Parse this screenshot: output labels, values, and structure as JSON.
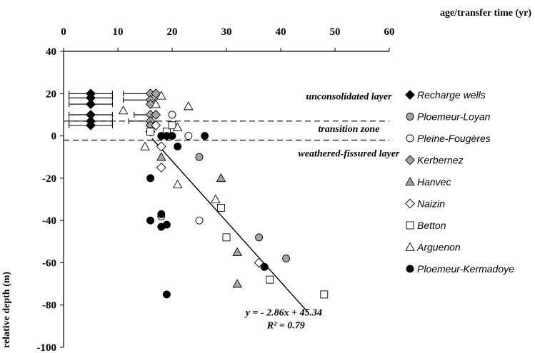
{
  "chart_data": {
    "type": "scatter",
    "xlabel": "age/transfer time (yr)",
    "ylabel": "relative depth (m)",
    "xlim": [
      0,
      60
    ],
    "ylim": [
      -100,
      40
    ],
    "xticks": [
      0,
      10,
      20,
      30,
      40,
      50,
      60
    ],
    "yticks": [
      40,
      20,
      0,
      -20,
      -40,
      -60,
      -80,
      -100
    ],
    "x_axis_position": "top",
    "grid": false,
    "legend_position": "right",
    "layers": [
      {
        "label": "unconsolidated layer",
        "label_x": 44,
        "label_y": 19
      },
      {
        "label": "transition zone",
        "label_x": 44,
        "label_y": 3.5
      },
      {
        "label": "weathered-fissured layer",
        "label_x": 44,
        "label_y": -8
      }
    ],
    "boundaries": [
      7,
      -2
    ],
    "fit": {
      "equation": "y = - 2.86x + 45.34",
      "r2": "R² = 0.79",
      "slope": -2.86,
      "intercept": 45.34,
      "x_range": [
        16.3,
        45
      ],
      "label_x": 34,
      "label_y": -85,
      "r2_label_x": 37,
      "r2_label_y": -91
    },
    "series": [
      {
        "name": "Recharge wells",
        "marker": "diamond",
        "fill": "#000000",
        "points": [
          [
            5,
            20
          ],
          [
            5,
            18
          ],
          [
            5,
            15
          ],
          [
            5,
            10
          ],
          [
            5,
            7
          ],
          [
            5,
            5
          ]
        ],
        "error_bars": [
          [
            1,
            9,
            20
          ],
          [
            1,
            9,
            18
          ],
          [
            1,
            9,
            15
          ],
          [
            1,
            9,
            10
          ],
          [
            1,
            9,
            7
          ],
          [
            1,
            9,
            5
          ]
        ]
      },
      {
        "name": "Ploemeur-Loyan",
        "marker": "circle",
        "fill": "#a6a6a6",
        "points": [
          [
            25,
            -10
          ],
          [
            36,
            -48
          ],
          [
            41,
            -58
          ]
        ]
      },
      {
        "name": "Pleine-Fougères",
        "marker": "circle",
        "fill": "#ffffff",
        "points": [
          [
            20,
            10
          ],
          [
            23,
            0
          ],
          [
            18,
            -38
          ],
          [
            25,
            -40
          ]
        ]
      },
      {
        "name": "Kerbernez",
        "marker": "diamond",
        "fill": "#a6a6a6",
        "points": [
          [
            16,
            20
          ],
          [
            17,
            20
          ],
          [
            16,
            17
          ],
          [
            16,
            15
          ],
          [
            16,
            10
          ],
          [
            17,
            10
          ],
          [
            16,
            7
          ],
          [
            16,
            5
          ]
        ],
        "error_bars": [
          [
            11,
            16,
            20
          ],
          [
            11,
            17,
            17
          ],
          [
            13,
            16,
            10
          ],
          [
            12,
            16,
            7
          ]
        ]
      },
      {
        "name": "Hanvec",
        "marker": "triangle",
        "fill": "#a6a6a6",
        "points": [
          [
            18,
            -10
          ],
          [
            29,
            -20
          ],
          [
            32,
            -55
          ],
          [
            32,
            -70
          ]
        ]
      },
      {
        "name": "Naizin",
        "marker": "diamond",
        "fill": "#ffffff",
        "points": [
          [
            17,
            5
          ],
          [
            16,
            2
          ],
          [
            18,
            -5
          ],
          [
            18,
            -15
          ],
          [
            36,
            -60
          ]
        ]
      },
      {
        "name": "Betton",
        "marker": "square",
        "fill": "#ffffff",
        "points": [
          [
            16,
            2
          ],
          [
            19,
            2
          ],
          [
            20,
            5
          ],
          [
            29,
            -34
          ],
          [
            30,
            -48
          ],
          [
            38,
            -68
          ],
          [
            48,
            -75
          ]
        ]
      },
      {
        "name": "Arguenon",
        "marker": "triangle",
        "fill": "#ffffff",
        "points": [
          [
            18,
            19
          ],
          [
            17,
            15
          ],
          [
            11,
            12
          ],
          [
            21,
            4
          ],
          [
            15,
            -5
          ],
          [
            21,
            -23
          ],
          [
            28,
            -30
          ],
          [
            23,
            14
          ]
        ]
      },
      {
        "name": "Ploemeur-Kermadoye",
        "marker": "circle",
        "fill": "#000000",
        "points": [
          [
            18,
            0
          ],
          [
            19,
            0
          ],
          [
            20,
            0
          ],
          [
            26,
            0
          ],
          [
            21,
            -5
          ],
          [
            16,
            -20
          ],
          [
            16,
            -40
          ],
          [
            18,
            -37
          ],
          [
            18,
            -43
          ],
          [
            19,
            -42
          ],
          [
            37,
            -62
          ],
          [
            19,
            -75
          ]
        ]
      }
    ]
  }
}
